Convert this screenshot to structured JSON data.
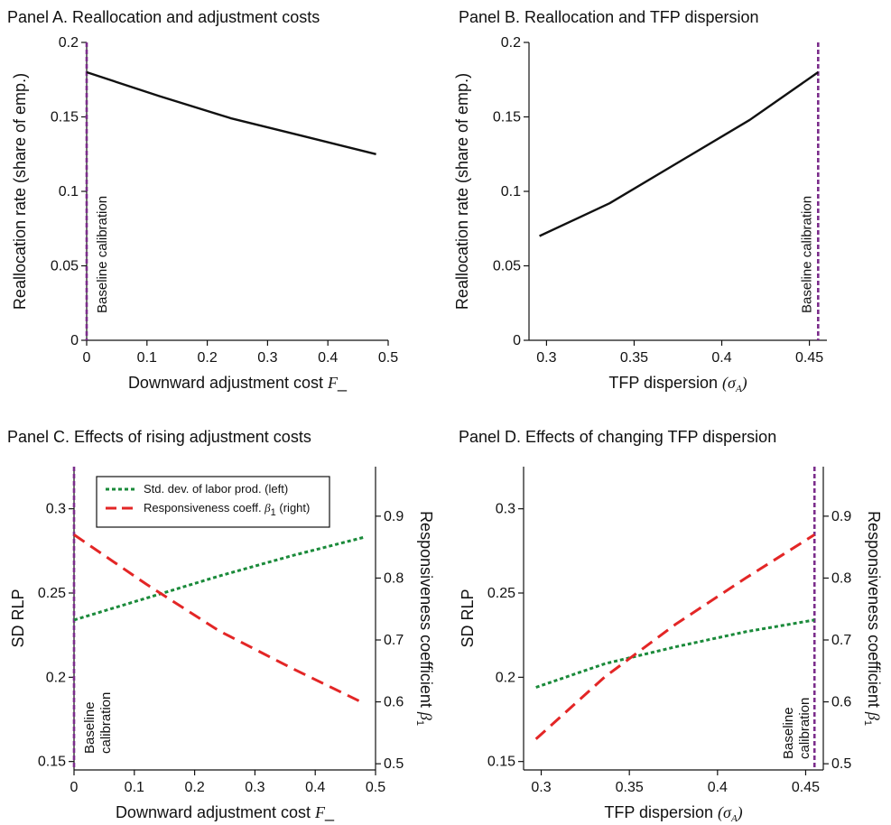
{
  "chart_data": [
    {
      "id": "A",
      "type": "line",
      "title": "Panel A. Reallocation and adjustment costs",
      "xlabel": "Downward adjustment cost",
      "xlabel_math": "F_",
      "ylabel": "Reallocation rate (share of emp.)",
      "xlim": [
        0,
        0.5
      ],
      "ylim": [
        0,
        0.2
      ],
      "xticks": [
        "0",
        "0.1",
        "0.2",
        "0.3",
        "0.4",
        "0.5"
      ],
      "yticks": [
        "0",
        "0.05",
        "0.1",
        "0.15",
        "0.2"
      ],
      "baseline": {
        "x": 0,
        "label": "Baseline calibration",
        "color": "#7b2d8b"
      },
      "series": [
        {
          "color": "#111111",
          "axis": "left",
          "style": "solid",
          "x": [
            0,
            0.12,
            0.24,
            0.36,
            0.48
          ],
          "y": [
            0.18,
            0.164,
            0.149,
            0.137,
            0.125
          ]
        }
      ]
    },
    {
      "id": "B",
      "type": "line",
      "title": "Panel B. Reallocation and TFP dispersion",
      "xlabel": "TFP dispersion",
      "xlabel_math": "(σA)",
      "ylabel": "Reallocation rate (share of emp.)",
      "xlim": [
        0.29,
        0.46
      ],
      "ylim": [
        0,
        0.2
      ],
      "xticks": [
        "0.3",
        "0.35",
        "0.4",
        "0.45"
      ],
      "yticks": [
        "0",
        "0.05",
        "0.1",
        "0.15",
        "0.2"
      ],
      "baseline": {
        "x": 0.455,
        "label": "Baseline calibration",
        "color": "#7b2d8b"
      },
      "series": [
        {
          "color": "#111111",
          "axis": "left",
          "style": "solid",
          "x": [
            0.296,
            0.336,
            0.376,
            0.416,
            0.455
          ],
          "y": [
            0.07,
            0.092,
            0.12,
            0.148,
            0.18
          ]
        }
      ]
    },
    {
      "id": "C",
      "type": "line",
      "title": "Panel C. Effects of rising adjustment costs",
      "xlabel": "Downward adjustment cost",
      "xlabel_math": "F_",
      "ylabel": "SD RLP",
      "ylabel_right": "Responsiveness coefficient",
      "ylabel_right_math": "β1",
      "xlim": [
        0,
        0.5
      ],
      "ylim": [
        0.145,
        0.325
      ],
      "ylim_right": [
        0.49,
        0.98
      ],
      "xticks": [
        "0",
        "0.1",
        "0.2",
        "0.3",
        "0.4",
        "0.5"
      ],
      "yticks": [
        "0.15",
        "0.2",
        "0.25",
        "0.3"
      ],
      "yticks_right": [
        "0.5",
        "0.6",
        "0.7",
        "0.8",
        "0.9"
      ],
      "baseline": {
        "x": 0,
        "label_lines": [
          "Baseline",
          "calibration"
        ],
        "color": "#7b2d8b"
      },
      "legend": {
        "position": "top-left",
        "entries": [
          {
            "text": "Std. dev. of labor prod. (left)",
            "color": "#1a8a3a",
            "style": "dotted"
          },
          {
            "text": "Responsiveness coeff.",
            "math": "β1",
            "suffix": "(right)",
            "color": "#e32626",
            "style": "dashed"
          }
        ]
      },
      "series": [
        {
          "color": "#1a8a3a",
          "axis": "left",
          "style": "dotted",
          "x": [
            0,
            0.12,
            0.24,
            0.36,
            0.48
          ],
          "y": [
            0.234,
            0.247,
            0.26,
            0.272,
            0.283
          ]
        },
        {
          "color": "#e32626",
          "axis": "right",
          "style": "dashed",
          "x": [
            0,
            0.12,
            0.24,
            0.36,
            0.48
          ],
          "y": [
            0.87,
            0.79,
            0.715,
            0.655,
            0.598
          ]
        }
      ]
    },
    {
      "id": "D",
      "type": "line",
      "title": "Panel D. Effects of changing TFP dispersion",
      "xlabel": "TFP dispersion",
      "xlabel_math": "(σA)",
      "ylabel": "SD RLP",
      "ylabel_right": "Responsiveness coefficient",
      "ylabel_right_math": "β1",
      "xlim": [
        0.29,
        0.46
      ],
      "ylim": [
        0.145,
        0.325
      ],
      "ylim_right": [
        0.49,
        0.98
      ],
      "xticks": [
        "0.3",
        "0.35",
        "0.4",
        "0.45"
      ],
      "yticks": [
        "0.15",
        "0.2",
        "0.25",
        "0.3"
      ],
      "yticks_right": [
        "0.5",
        "0.6",
        "0.7",
        "0.8",
        "0.9"
      ],
      "baseline": {
        "x": 0.455,
        "label_lines": [
          "Baseline",
          "calibration"
        ],
        "color": "#7b2d8b"
      },
      "series": [
        {
          "color": "#1a8a3a",
          "axis": "left",
          "style": "dotted",
          "x": [
            0.297,
            0.336,
            0.376,
            0.416,
            0.455
          ],
          "y": [
            0.194,
            0.208,
            0.218,
            0.227,
            0.234
          ]
        },
        {
          "color": "#e32626",
          "axis": "right",
          "style": "dashed",
          "x": [
            0.297,
            0.336,
            0.376,
            0.416,
            0.455
          ],
          "y": [
            0.54,
            0.64,
            0.725,
            0.8,
            0.87
          ]
        }
      ]
    }
  ]
}
